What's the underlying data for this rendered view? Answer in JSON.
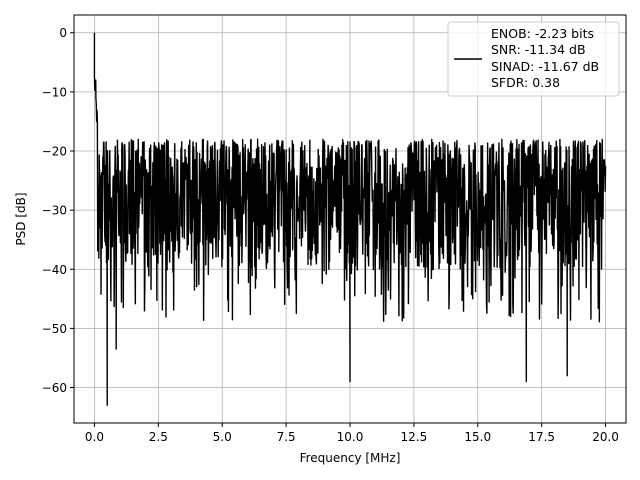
{
  "chart_data": {
    "type": "line",
    "title": "",
    "xlabel": "Frequency [MHz]",
    "ylabel": "PSD [dB]",
    "xlim": [
      -0.8,
      20.8
    ],
    "ylim": [
      -66,
      3
    ],
    "x_ticks": [
      0.0,
      2.5,
      5.0,
      7.5,
      10.0,
      12.5,
      15.0,
      17.5,
      20.0
    ],
    "x_tick_labels": [
      "0.0",
      "2.5",
      "5.0",
      "7.5",
      "10.0",
      "12.5",
      "15.0",
      "17.5",
      "20.0"
    ],
    "y_ticks": [
      0,
      -10,
      -20,
      -30,
      -40,
      -50,
      -60
    ],
    "y_tick_labels": [
      "0",
      "−10",
      "−20",
      "−30",
      "−40",
      "−50",
      "−60"
    ],
    "grid": true,
    "legend_position": "top-right",
    "series": [
      {
        "name": "ENOB: -2.23 bits\nSNR: -11.34 dB\nSINAD: -11.67 dB\nSFDR: 0.38",
        "color": "#000000",
        "x_range": [
          0,
          20
        ],
        "notable_points": [
          {
            "x": 0.0,
            "y": 0
          },
          {
            "x": 0.05,
            "y": -8
          },
          {
            "x": 0.5,
            "y": -63
          },
          {
            "x": 0.85,
            "y": -53.5
          },
          {
            "x": 10.0,
            "y": -59
          },
          {
            "x": 16.9,
            "y": -59
          },
          {
            "x": 18.5,
            "y": -58
          }
        ],
        "noise_floor_mean": -28,
        "noise_band_upper": -18,
        "noise_band_lower": -40
      }
    ],
    "legend_lines": [
      "ENOB: -2.23 bits",
      "SNR: -11.34 dB",
      "SINAD: -11.67 dB",
      "SFDR: 0.38"
    ]
  }
}
